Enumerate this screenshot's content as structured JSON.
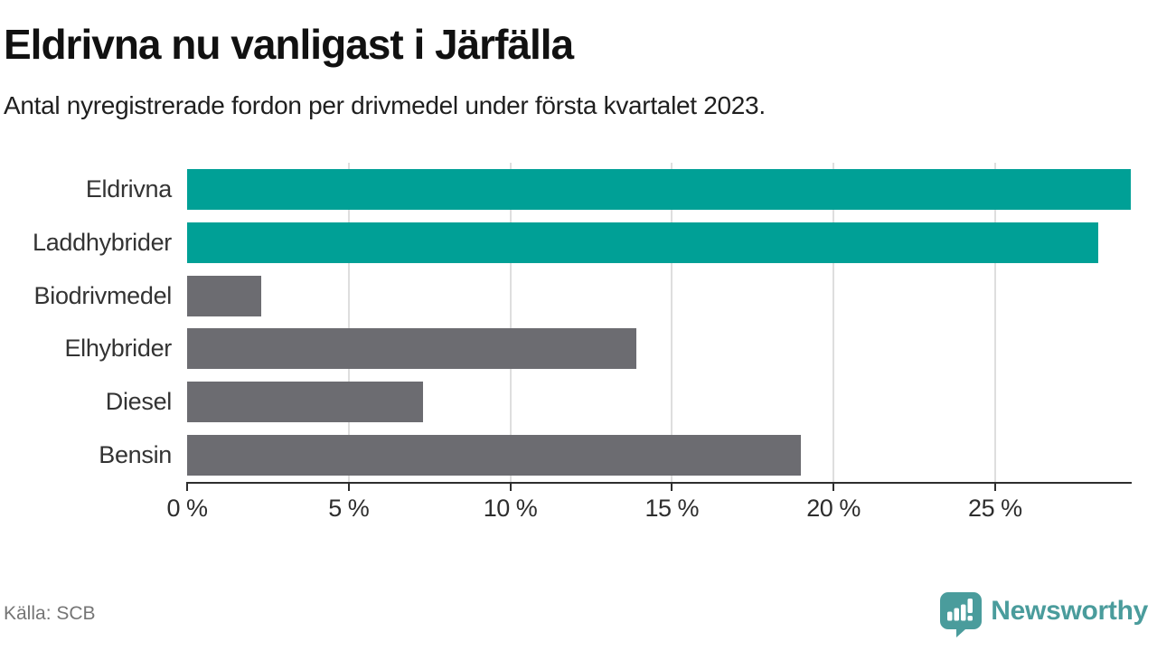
{
  "header": {
    "title": "Eldrivna nu vanligast i Järfälla",
    "subtitle": "Antal nyregistrerade fordon per drivmedel under första kvartalet 2023."
  },
  "chart_data": {
    "type": "bar",
    "orientation": "horizontal",
    "title": "Eldrivna nu vanligast i Järfälla",
    "subtitle": "Antal nyregistrerade fordon per drivmedel under första kvartalet 2023.",
    "categories": [
      "Eldrivna",
      "Laddhybrider",
      "Biodrivmedel",
      "Elhybrider",
      "Diesel",
      "Bensin"
    ],
    "values": [
      29.2,
      28.2,
      2.3,
      13.9,
      7.3,
      19.0
    ],
    "unit": "%",
    "bar_colors": [
      "#00a096",
      "#00a096",
      "#6c6c71",
      "#6c6c71",
      "#6c6c71",
      "#6c6c71"
    ],
    "xlim": [
      0,
      29.2
    ],
    "x_tick_values": [
      0,
      5,
      10,
      15,
      20,
      25
    ],
    "x_tick_labels": [
      "0 %",
      "5 %",
      "10 %",
      "15 %",
      "20 %",
      "25 %"
    ],
    "grid": "vertical-light-gray",
    "legend": "none"
  },
  "colors": {
    "teal": "#00a096",
    "gray": "#6c6c71",
    "grid": "#dedede",
    "axis": "#2e2e2e",
    "brand": "#4a9c9c"
  },
  "footer": {
    "source": "Källa: SCB",
    "brand": "Newsworthy"
  },
  "icons": {
    "logo": "bar-chart-pin-icon"
  }
}
